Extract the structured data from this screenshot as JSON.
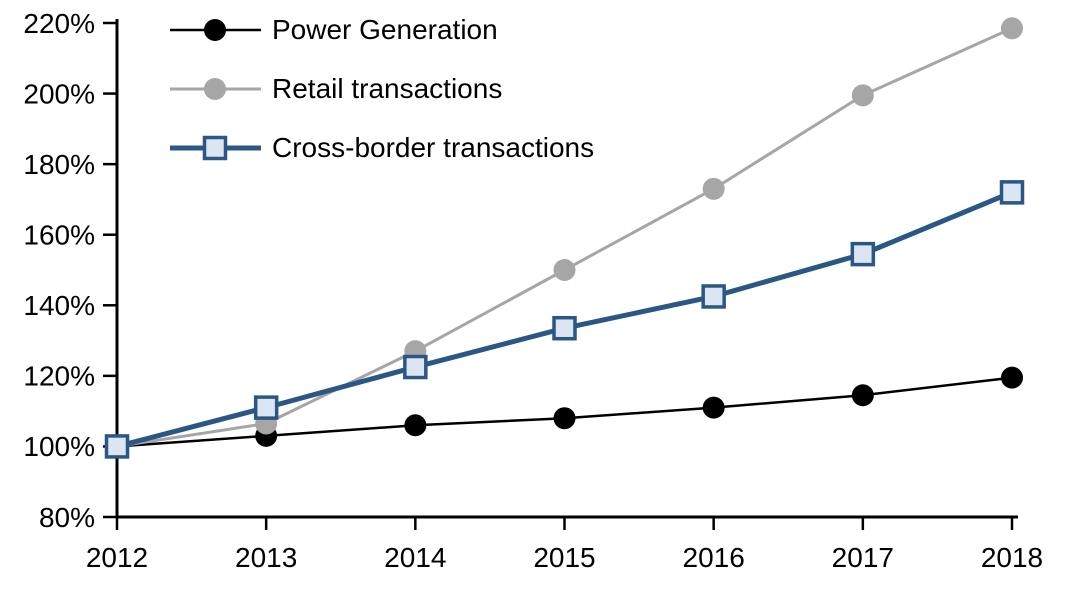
{
  "chart_data": {
    "type": "line",
    "title": "",
    "xlabel": "",
    "ylabel": "",
    "x_tick_labels": [
      "2012",
      "2013",
      "2014",
      "2015",
      "2016",
      "2017",
      "2018"
    ],
    "y_tick_labels": [
      "80%",
      "100%",
      "120%",
      "140%",
      "160%",
      "180%",
      "200%",
      "220%"
    ],
    "ylim": [
      80,
      220
    ],
    "y_tick_step": 20,
    "grid": false,
    "legend_position": "top-left",
    "axis_color": "#000000",
    "background_color": "#FFFFFF",
    "series": [
      {
        "name": "Power Generation",
        "marker": "circle",
        "color": "#000000",
        "marker_fill": "#000000",
        "line_width": 2.5,
        "values": [
          100,
          103,
          106,
          108,
          111,
          114.5,
          119.5
        ]
      },
      {
        "name": "Retail transactions",
        "marker": "circle",
        "color": "#A6A6A6",
        "marker_fill": "#A6A6A6",
        "line_width": 3,
        "values": [
          100,
          106.5,
          127,
          150,
          173,
          199.5,
          218.5
        ]
      },
      {
        "name": "Cross-border transactions",
        "marker": "square",
        "color": "#2A5783",
        "marker_fill": "#DCE6F2",
        "line_width": 5,
        "values": [
          100,
          111,
          122.5,
          133.5,
          142.5,
          154.5,
          172
        ]
      }
    ]
  }
}
